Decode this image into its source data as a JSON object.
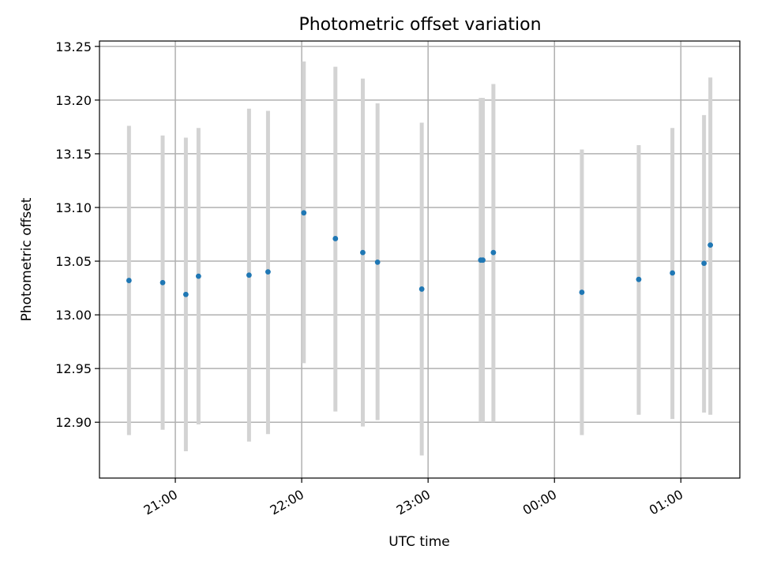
{
  "chart_data": {
    "type": "scatter",
    "title": "Photometric offset variation",
    "xlabel": "UTC time",
    "ylabel": "Photometric offset",
    "grid": true,
    "legend": "none",
    "xlim": [
      "2000-01-01T20:24",
      "2000-01-02T01:28"
    ],
    "ylim": [
      12.848,
      13.255
    ],
    "x_ticks": [
      {
        "t": "2000-01-01T21:00",
        "label": "21:00"
      },
      {
        "t": "2000-01-01T22:00",
        "label": "22:00"
      },
      {
        "t": "2000-01-01T23:00",
        "label": "23:00"
      },
      {
        "t": "2000-01-02T00:00",
        "label": "00:00"
      },
      {
        "t": "2000-01-02T01:00",
        "label": "01:00"
      }
    ],
    "y_ticks": [
      {
        "v": 12.9,
        "label": "12.90"
      },
      {
        "v": 12.95,
        "label": "12.95"
      },
      {
        "v": 13.0,
        "label": "13.00"
      },
      {
        "v": 13.05,
        "label": "13.05"
      },
      {
        "v": 13.1,
        "label": "13.10"
      },
      {
        "v": 13.15,
        "label": "13.15"
      },
      {
        "v": 13.2,
        "label": "13.20"
      },
      {
        "v": 13.25,
        "label": "13.25"
      }
    ],
    "colors": {
      "points": "#1f77b4",
      "error_bars": "#d3d3d3",
      "grid": "#b0b0b0",
      "frame": "#000000"
    },
    "points": [
      {
        "t": "2000-01-01T20:38",
        "y": 13.032,
        "lo": 12.888,
        "hi": 13.176
      },
      {
        "t": "2000-01-01T20:54",
        "y": 13.03,
        "lo": 12.893,
        "hi": 13.167
      },
      {
        "t": "2000-01-01T21:05",
        "y": 13.019,
        "lo": 12.873,
        "hi": 13.165
      },
      {
        "t": "2000-01-01T21:11",
        "y": 13.036,
        "lo": 12.898,
        "hi": 13.174
      },
      {
        "t": "2000-01-01T21:35",
        "y": 13.037,
        "lo": 12.882,
        "hi": 13.192
      },
      {
        "t": "2000-01-01T21:44",
        "y": 13.04,
        "lo": 12.889,
        "hi": 13.19
      },
      {
        "t": "2000-01-01T22:01",
        "y": 13.095,
        "lo": 12.955,
        "hi": 13.236
      },
      {
        "t": "2000-01-01T22:16",
        "y": 13.071,
        "lo": 12.91,
        "hi": 13.231
      },
      {
        "t": "2000-01-01T22:29",
        "y": 13.058,
        "lo": 12.896,
        "hi": 13.22
      },
      {
        "t": "2000-01-01T22:36",
        "y": 13.049,
        "lo": 12.902,
        "hi": 13.197
      },
      {
        "t": "2000-01-01T22:57",
        "y": 13.024,
        "lo": 12.869,
        "hi": 13.179
      },
      {
        "t": "2000-01-01T23:25",
        "y": 13.051,
        "lo": 12.9,
        "hi": 13.202
      },
      {
        "t": "2000-01-01T23:26",
        "y": 13.051,
        "lo": 12.9,
        "hi": 13.202
      },
      {
        "t": "2000-01-01T23:31",
        "y": 13.058,
        "lo": 12.9,
        "hi": 13.215
      },
      {
        "t": "2000-01-02T00:13",
        "y": 13.021,
        "lo": 12.888,
        "hi": 13.154
      },
      {
        "t": "2000-01-02T00:40",
        "y": 13.033,
        "lo": 12.907,
        "hi": 13.158
      },
      {
        "t": "2000-01-02T00:56",
        "y": 13.039,
        "lo": 12.903,
        "hi": 13.174
      },
      {
        "t": "2000-01-02T01:11",
        "y": 13.048,
        "lo": 12.909,
        "hi": 13.186
      },
      {
        "t": "2000-01-02T01:14",
        "y": 13.065,
        "lo": 12.907,
        "hi": 13.221
      }
    ]
  }
}
